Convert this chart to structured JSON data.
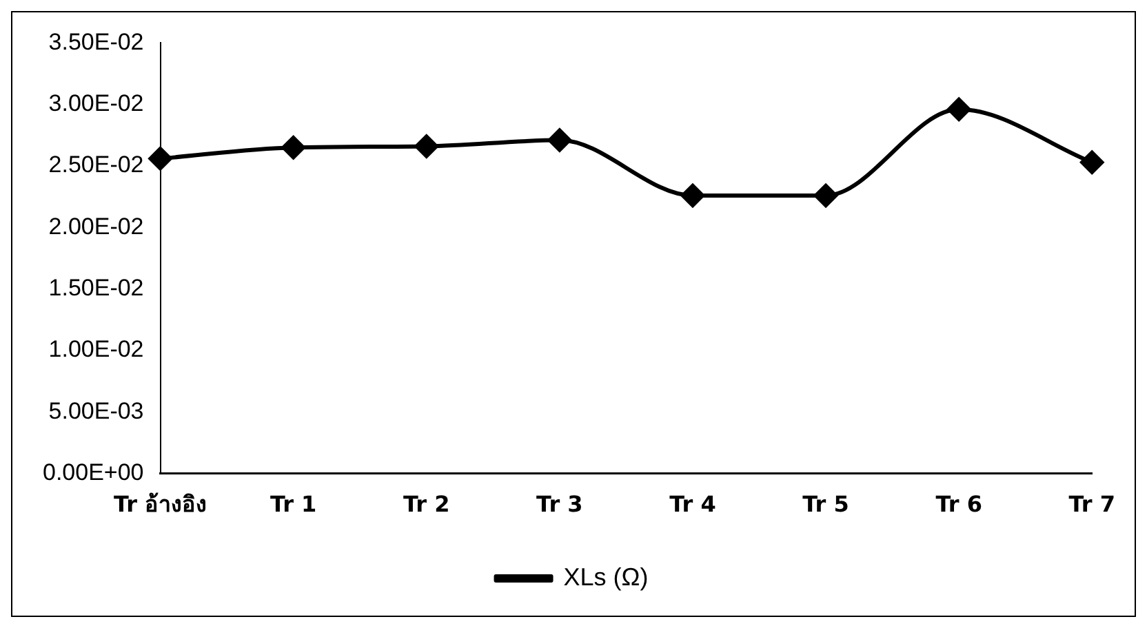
{
  "chart_data": {
    "type": "line",
    "categories": [
      "Tr อ้างอิง",
      "Tr 1",
      "Tr 2",
      "Tr 3",
      "Tr 4",
      "Tr 5",
      "Tr 6",
      "Tr 7"
    ],
    "series": [
      {
        "name": "XLs (Ω)",
        "color": "#000000",
        "values": [
          0.0256,
          0.0265,
          0.0266,
          0.0271,
          0.0226,
          0.0226,
          0.0296,
          0.0253
        ]
      }
    ],
    "ylim": [
      0,
      0.035
    ],
    "yticks": [
      {
        "value": 0,
        "label": "0.00E+00"
      },
      {
        "value": 0.005,
        "label": "5.00E-03"
      },
      {
        "value": 0.01,
        "label": "1.00E-02"
      },
      {
        "value": 0.015,
        "label": "1.50E-02"
      },
      {
        "value": 0.02,
        "label": "2.00E-02"
      },
      {
        "value": 0.025,
        "label": "2.50E-02"
      },
      {
        "value": 0.03,
        "label": "3.00E-02"
      },
      {
        "value": 0.035,
        "label": "3.50E-02"
      }
    ],
    "grid": false,
    "legend": "bottom",
    "marker": "diamond",
    "line_style": "solid"
  }
}
